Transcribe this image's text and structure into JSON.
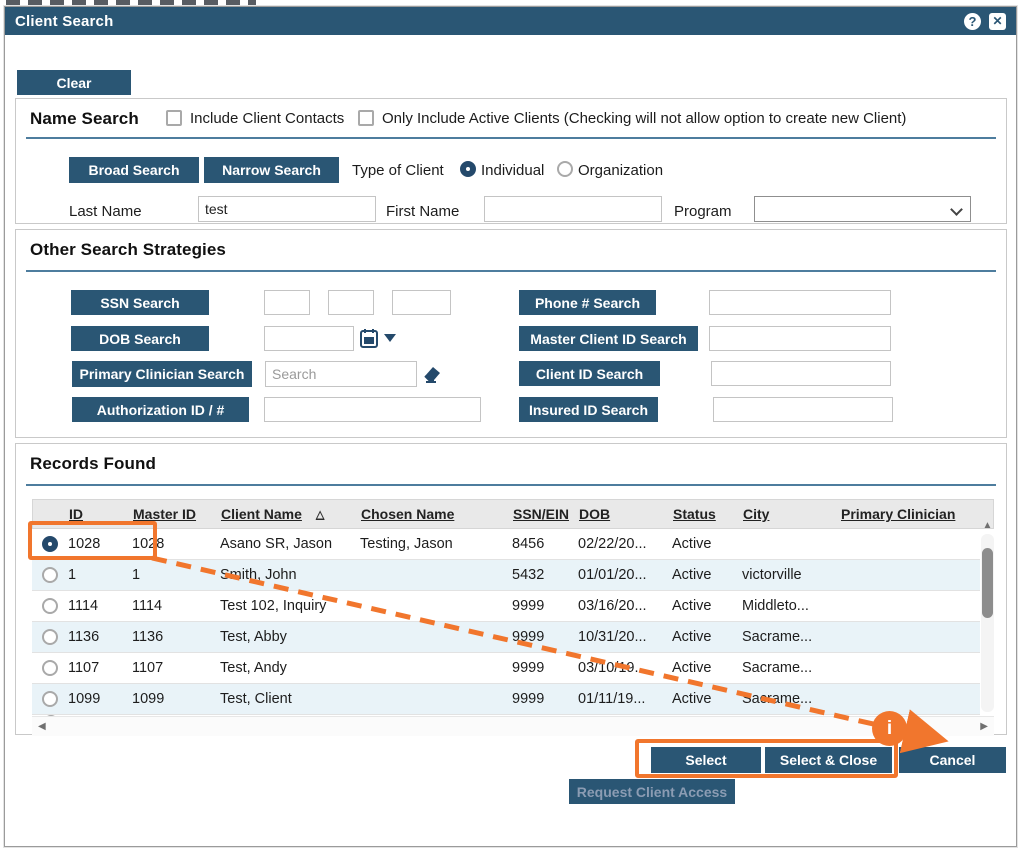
{
  "window": {
    "title": "Client Search",
    "help_icon": "?",
    "close_icon": "✕"
  },
  "toolbar": {
    "clear_label": "Clear"
  },
  "name_search": {
    "heading": "Name Search",
    "include_contacts_label": "Include Client Contacts",
    "active_only_label": "Only Include Active Clients (Checking will not allow option to create new Client)",
    "broad_label": "Broad Search",
    "narrow_label": "Narrow Search",
    "type_label": "Type of Client",
    "individual_label": "Individual",
    "organization_label": "Organization",
    "last_name_label": "Last Name",
    "last_name_value": "test",
    "first_name_label": "First Name",
    "first_name_value": "",
    "program_label": "Program",
    "program_value": ""
  },
  "other_search": {
    "heading": "Other Search Strategies",
    "ssn_label": "SSN Search",
    "dob_label": "DOB Search",
    "primary_clinician_label": "Primary Clinician Search",
    "clinician_placeholder": "Search",
    "authorization_label": "Authorization ID / #",
    "phone_label": "Phone # Search",
    "master_id_label": "Master Client ID Search",
    "client_id_label": "Client ID Search",
    "insured_id_label": "Insured ID Search"
  },
  "records": {
    "heading": "Records Found",
    "columns": [
      "",
      "ID",
      "Master ID",
      "Client Name",
      "Chosen Name",
      "SSN/EIN",
      "DOB",
      "Status",
      "City",
      "Primary Clinician"
    ],
    "sorted_column": "Client Name",
    "sort_icon": "△",
    "rows": [
      {
        "selected": true,
        "id": "1028",
        "master_id": "1028",
        "client_name": "Asano SR, Jason",
        "chosen_name": "Testing, Jason",
        "ssn_ein": "8456",
        "dob": "02/22/20...",
        "status": "Active",
        "city": "",
        "primary_clinician": ""
      },
      {
        "selected": false,
        "id": "1",
        "master_id": "1",
        "client_name": "Smith, John",
        "chosen_name": "",
        "ssn_ein": "5432",
        "dob": "01/01/20...",
        "status": "Active",
        "city": "victorville",
        "primary_clinician": ""
      },
      {
        "selected": false,
        "id": "1114",
        "master_id": "1114",
        "client_name": "Test 102, Inquiry",
        "chosen_name": "",
        "ssn_ein": "9999",
        "dob": "03/16/20...",
        "status": "Active",
        "city": "Middleto...",
        "primary_clinician": ""
      },
      {
        "selected": false,
        "id": "1136",
        "master_id": "1136",
        "client_name": "Test, Abby",
        "chosen_name": "",
        "ssn_ein": "9999",
        "dob": "10/31/20...",
        "status": "Active",
        "city": "Sacrame...",
        "primary_clinician": ""
      },
      {
        "selected": false,
        "id": "1107",
        "master_id": "1107",
        "client_name": "Test, Andy",
        "chosen_name": "",
        "ssn_ein": "9999",
        "dob": "03/10/19...",
        "status": "Active",
        "city": "Sacrame...",
        "primary_clinician": ""
      },
      {
        "selected": false,
        "id": "1099",
        "master_id": "1099",
        "client_name": "Test, Client",
        "chosen_name": "",
        "ssn_ein": "9999",
        "dob": "01/11/19...",
        "status": "Active",
        "city": "Sacrame...",
        "primary_clinician": ""
      }
    ]
  },
  "scrollbar_icons": {
    "up": "▲",
    "down": "▼",
    "left": "◀",
    "right": "▶"
  },
  "footer": {
    "select_label": "Select",
    "select_close_label": "Select & Close",
    "cancel_label": "Cancel",
    "request_access_label": "Request Client Access"
  },
  "annotations": {
    "info_marker": "i"
  },
  "colors": {
    "navy": "#2a5674",
    "accent_orange": "#f1762d",
    "alt_row": "#e9f3f8",
    "rule": "#4e7d9e"
  }
}
